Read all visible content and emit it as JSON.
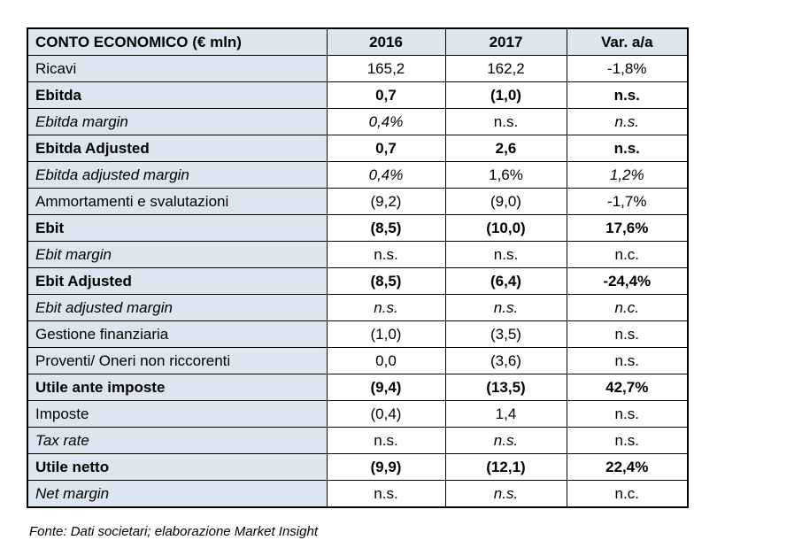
{
  "colors": {
    "header_bg": "#dce6f1",
    "label_column_bg": "#dce6f1",
    "value_cell_bg": "#ffffff",
    "border": "#000000",
    "text": "#000000"
  },
  "table": {
    "columns": [
      "CONTO ECONOMICO (€ mln)",
      "2016",
      "2017",
      "Var. a/a"
    ],
    "rows": [
      {
        "label": "Ricavi",
        "label_style": "normal",
        "values": [
          {
            "text": "165,2",
            "italic": false
          },
          {
            "text": "162,2",
            "italic": false
          },
          {
            "text": "-1,8%",
            "italic": false
          }
        ]
      },
      {
        "label": "Ebitda",
        "label_style": "bold",
        "values": [
          {
            "text": "0,7",
            "italic": false
          },
          {
            "text": "(1,0)",
            "italic": false
          },
          {
            "text": "n.s.",
            "italic": false
          }
        ]
      },
      {
        "label": "Ebitda margin",
        "label_style": "italic",
        "values": [
          {
            "text": "0,4%",
            "italic": true
          },
          {
            "text": "n.s.",
            "italic": false
          },
          {
            "text": "n.s.",
            "italic": true
          }
        ]
      },
      {
        "label": "Ebitda Adjusted",
        "label_style": "bold",
        "values": [
          {
            "text": "0,7",
            "italic": false
          },
          {
            "text": "2,6",
            "italic": false
          },
          {
            "text": "n.s.",
            "italic": false
          }
        ]
      },
      {
        "label": "Ebitda adjusted margin",
        "label_style": "italic",
        "values": [
          {
            "text": "0,4%",
            "italic": true
          },
          {
            "text": "1,6%",
            "italic": false
          },
          {
            "text": "1,2%",
            "italic": true
          }
        ]
      },
      {
        "label": "Ammortamenti e svalutazioni",
        "label_style": "normal",
        "values": [
          {
            "text": "(9,2)",
            "italic": false
          },
          {
            "text": "(9,0)",
            "italic": false
          },
          {
            "text": "-1,7%",
            "italic": false
          }
        ]
      },
      {
        "label": "Ebit",
        "label_style": "bold",
        "values": [
          {
            "text": "(8,5)",
            "italic": false
          },
          {
            "text": "(10,0)",
            "italic": false
          },
          {
            "text": "17,6%",
            "italic": false
          }
        ]
      },
      {
        "label": "Ebit margin",
        "label_style": "italic",
        "values": [
          {
            "text": "n.s.",
            "italic": false
          },
          {
            "text": "n.s.",
            "italic": false
          },
          {
            "text": "n.c.",
            "italic": false
          }
        ]
      },
      {
        "label": "Ebit Adjusted",
        "label_style": "bold",
        "values": [
          {
            "text": "(8,5)",
            "italic": false
          },
          {
            "text": "(6,4)",
            "italic": false
          },
          {
            "text": "-24,4%",
            "italic": false
          }
        ]
      },
      {
        "label": "Ebit adjusted margin",
        "label_style": "italic",
        "values": [
          {
            "text": "n.s.",
            "italic": true
          },
          {
            "text": "n.s.",
            "italic": true
          },
          {
            "text": "n.c.",
            "italic": true
          }
        ]
      },
      {
        "label": "Gestione finanziaria",
        "label_style": "normal",
        "values": [
          {
            "text": "(1,0)",
            "italic": false
          },
          {
            "text": "(3,5)",
            "italic": false
          },
          {
            "text": "n.s.",
            "italic": false
          }
        ]
      },
      {
        "label": "Proventi/ Oneri non riccorenti",
        "label_style": "normal",
        "values": [
          {
            "text": "0,0",
            "italic": false
          },
          {
            "text": "(3,6)",
            "italic": false
          },
          {
            "text": "n.s.",
            "italic": false
          }
        ]
      },
      {
        "label": "Utile ante imposte",
        "label_style": "bold",
        "values": [
          {
            "text": "(9,4)",
            "italic": false
          },
          {
            "text": "(13,5)",
            "italic": false
          },
          {
            "text": "42,7%",
            "italic": false
          }
        ]
      },
      {
        "label": "Imposte",
        "label_style": "normal",
        "values": [
          {
            "text": "(0,4)",
            "italic": false
          },
          {
            "text": "1,4",
            "italic": false
          },
          {
            "text": "n.s.",
            "italic": false
          }
        ]
      },
      {
        "label": "Tax rate",
        "label_style": "italic",
        "values": [
          {
            "text": "n.s.",
            "italic": false
          },
          {
            "text": "n.s.",
            "italic": true
          },
          {
            "text": "n.s.",
            "italic": false
          }
        ]
      },
      {
        "label": "Utile netto",
        "label_style": "bold",
        "values": [
          {
            "text": "(9,9)",
            "italic": false
          },
          {
            "text": "(12,1)",
            "italic": false
          },
          {
            "text": "22,4%",
            "italic": false
          }
        ]
      },
      {
        "label": "Net margin",
        "label_style": "italic",
        "values": [
          {
            "text": "n.s.",
            "italic": false
          },
          {
            "text": "n.s.",
            "italic": true
          },
          {
            "text": "n.c.",
            "italic": false
          }
        ]
      }
    ]
  },
  "footer": {
    "source_note": "Fonte: Dati societari; elaborazione Market Insight"
  }
}
